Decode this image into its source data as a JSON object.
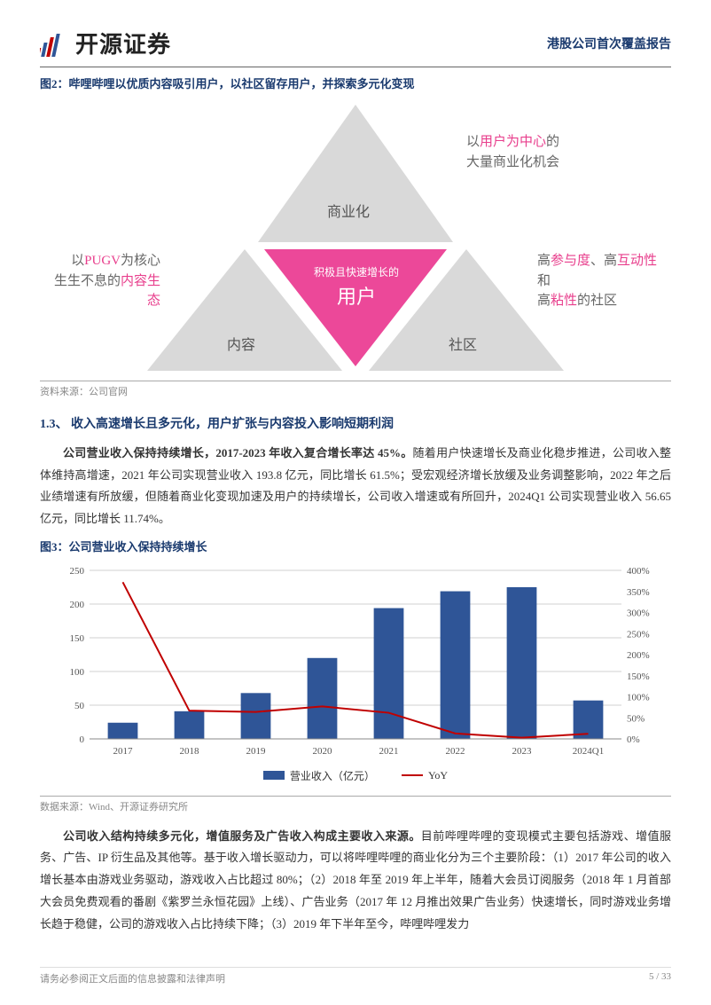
{
  "header": {
    "company_name": "开源证券",
    "report_type": "港股公司首次覆盖报告"
  },
  "figure2": {
    "title": "图2：哔哩哔哩以优质内容吸引用户，以社区留存用户，并探索多元化变现",
    "top_triangle_label": "商业化",
    "left_triangle_label": "内容",
    "right_triangle_label": "社区",
    "center_line1": "积极且快速增长的",
    "center_line2": "用户",
    "left_text_1": "以",
    "left_text_hl1": "PUGV",
    "left_text_2": "为核心",
    "left_text_3": "生生不息的",
    "left_text_hl2": "内容生态",
    "right_text_1": "高",
    "right_text_hl1": "参与度",
    "right_text_2": "、高",
    "right_text_hl2": "互动性",
    "right_text_3": "和",
    "right_text_4": "高",
    "right_text_hl3": "粘性",
    "right_text_5": "的社区",
    "top_text_1": "以",
    "top_text_hl1": "用户为中心",
    "top_text_2": "的",
    "top_text_3": "大量商业化机会",
    "source": "资料来源：公司官网",
    "gray_fill": "#d9d9d9",
    "pink_fill": "#ec4899",
    "hl_color": "#e83e8c"
  },
  "section13": {
    "title": "1.3、 收入高速增长且多元化，用户扩张与内容投入影响短期利润",
    "para1": "公司营业收入保持持续增长，2017-2023 年收入复合增长率达 45%。随着用户快速增长及商业化稳步推进，公司收入整体维持高增速，2021 年公司实现营业收入 193.8 亿元，同比增长 61.5%；受宏观经济增长放缓及业务调整影响，2022 年之后业绩增速有所放缓，但随着商业化变现加速及用户的持续增长，公司收入增速或有所回升，2024Q1 公司实现营业收入 56.65 亿元，同比增长 11.74%。",
    "para1_bold": "公司营业收入保持持续增长，2017-2023 年收入复合增长率达 45%。"
  },
  "figure3": {
    "title": "图3：公司营业收入保持持续增长",
    "type": "bar+line",
    "categories": [
      "2017",
      "2018",
      "2019",
      "2020",
      "2021",
      "2022",
      "2023",
      "2024Q1"
    ],
    "bar_values": [
      24,
      41,
      68,
      120,
      194,
      219,
      225,
      57
    ],
    "line_values": [
      372,
      67,
      64,
      77,
      62,
      13,
      3,
      12
    ],
    "bar_color": "#2f5597",
    "line_color": "#c00000",
    "left_ylim": [
      0,
      250
    ],
    "left_ytick_step": 50,
    "right_ylim": [
      0,
      400
    ],
    "right_ytick_step": 50,
    "grid_color": "#d0d0d0",
    "legend_bar": "营业收入（亿元）",
    "legend_line": "YoY",
    "source": "数据来源：Wind、开源证券研究所"
  },
  "para2": "公司收入结构持续多元化，增值服务及广告收入构成主要收入来源。目前哔哩哔哩的变现模式主要包括游戏、增值服务、广告、IP 衍生品及其他等。基于收入增长驱动力，可以将哔哩哔哩的商业化分为三个主要阶段：（1）2017 年公司的收入增长基本由游戏业务驱动，游戏收入占比超过 80%；（2）2018 年至 2019 年上半年，随着大会员订阅服务（2018 年 1 月首部大会员免费观看的番剧《紫罗兰永恒花园》上线）、广告业务（2017 年 12 月推出效果广告业务）快速增长，同时游戏业务增长趋于稳健，公司的游戏收入占比持续下降；（3）2019 年下半年至今，哔哩哔哩发力",
  "para2_bold": "公司收入结构持续多元化，增值服务及广告收入构成主要收入来源。",
  "footer": {
    "disclaimer": "请务必参阅正文后面的信息披露和法律声明",
    "page": "5 / 33"
  }
}
